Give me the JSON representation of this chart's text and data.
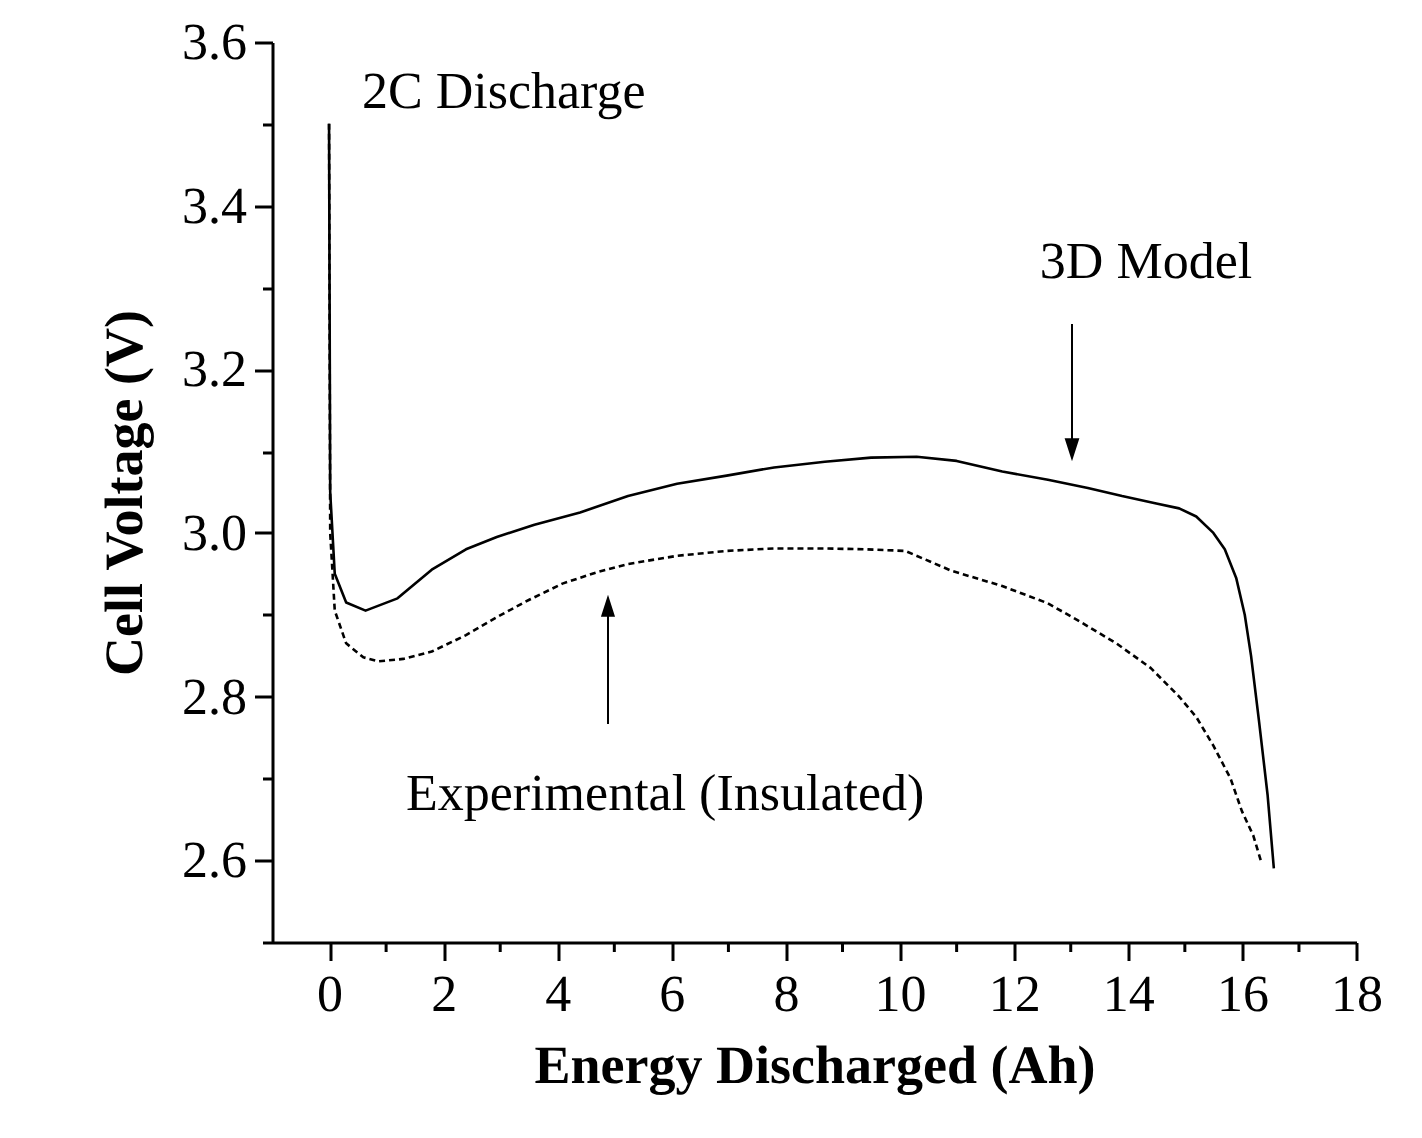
{
  "chart_data": {
    "type": "line",
    "xlabel": "Energy Discharged (Ah)",
    "ylabel": "Cell Voltage (V)",
    "xlim": [
      -1,
      18
    ],
    "ylim": [
      2.5,
      3.6
    ],
    "xticks": [
      0,
      {
        "value": 1,
        "label": null
      },
      2,
      {
        "value": 3,
        "label": null
      },
      4,
      {
        "value": 5,
        "label": null
      },
      6,
      {
        "value": 7,
        "label": null
      },
      8,
      {
        "value": 9,
        "label": null
      },
      10,
      {
        "value": 11,
        "label": null
      },
      12,
      {
        "value": 13,
        "label": null
      },
      14,
      {
        "value": 15,
        "label": null
      },
      16,
      {
        "value": 17,
        "label": null
      },
      18
    ],
    "yticks": [
      {
        "value": 2.5,
        "label": null
      },
      2.6,
      {
        "value": 2.7,
        "label": null
      },
      2.8,
      {
        "value": 2.9,
        "label": null
      },
      {
        "value": 3.0,
        "label": "3.0"
      },
      {
        "value": 3.1,
        "label": null
      },
      3.2,
      {
        "value": 3.3,
        "label": null
      },
      3.4,
      {
        "value": 3.5,
        "label": null
      },
      3.6
    ],
    "grid": false,
    "legend": false,
    "marker": "none",
    "series": [
      {
        "color": "#000000",
        "line_style": "solid",
        "x": [
          0,
          0.02,
          0.1,
          0.3,
          0.64,
          1.2,
          1.8,
          2.4,
          2.94,
          3.6,
          4.4,
          5.24,
          6.1,
          6.97,
          7.8,
          8.69,
          9.5,
          10.3,
          11.0,
          11.8,
          12.6,
          13.3,
          13.9,
          14.5,
          14.9,
          15.2,
          15.5,
          15.7,
          15.9,
          16.05,
          16.16,
          16.3,
          16.45,
          16.56
        ],
        "values": [
          3.5,
          3.05,
          2.95,
          2.915,
          2.905,
          2.92,
          2.955,
          2.98,
          2.995,
          3.01,
          3.025,
          3.045,
          3.06,
          3.07,
          3.08,
          3.087,
          3.092,
          3.093,
          3.088,
          3.075,
          3.065,
          3.055,
          3.045,
          3.036,
          3.03,
          3.02,
          3.0,
          2.98,
          2.945,
          2.9,
          2.85,
          2.77,
          2.68,
          2.59
        ]
      },
      {
        "color": "#000000",
        "line_style": "dashed",
        "x": [
          0,
          0.02,
          0.1,
          0.3,
          0.6,
          0.87,
          1.3,
          1.8,
          2.4,
          2.94,
          3.5,
          4.09,
          4.7,
          5.24,
          6.1,
          6.97,
          7.8,
          8.69,
          9.4,
          10.1,
          10.9,
          11.8,
          12.6,
          13.2,
          13.8,
          14.4,
          14.9,
          15.2,
          15.5,
          15.8,
          16.0,
          16.2,
          16.33
        ],
        "values": [
          3.5,
          3.0,
          2.905,
          2.865,
          2.848,
          2.843,
          2.846,
          2.855,
          2.875,
          2.897,
          2.918,
          2.938,
          2.952,
          2.962,
          2.972,
          2.978,
          2.981,
          2.981,
          2.98,
          2.978,
          2.954,
          2.935,
          2.914,
          2.89,
          2.865,
          2.835,
          2.8,
          2.775,
          2.74,
          2.7,
          2.66,
          2.63,
          2.6
        ]
      }
    ],
    "annotations": [
      "2C Discharge",
      "3D Model",
      "Experimental (Insulated)"
    ]
  }
}
